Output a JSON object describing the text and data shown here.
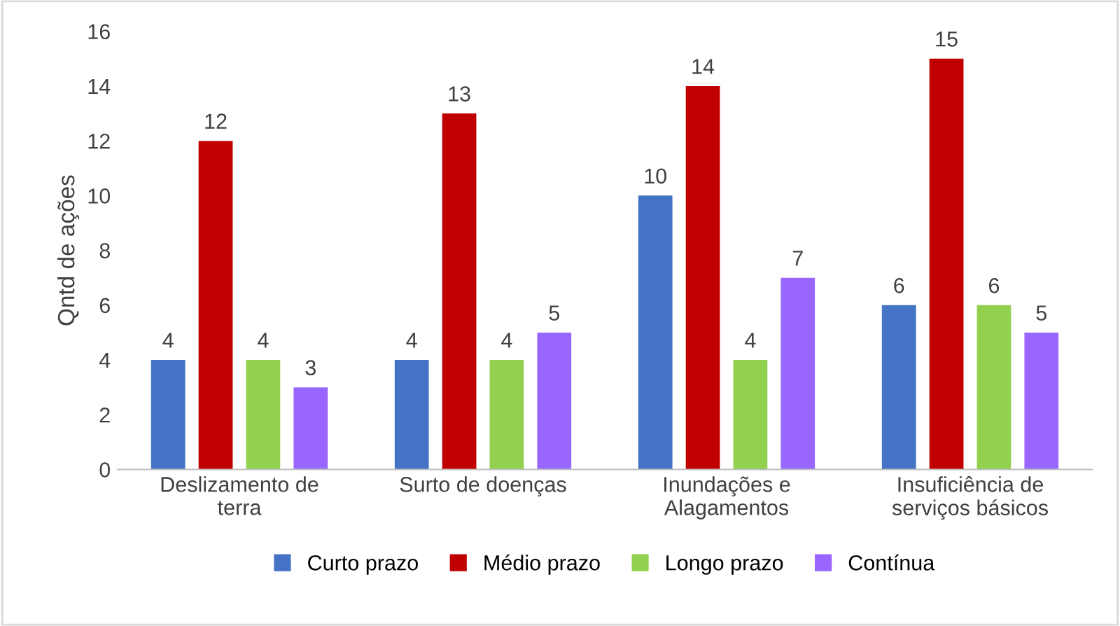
{
  "chart_data": {
    "type": "bar",
    "ylabel": "Qntd de ações",
    "categories": [
      "Deslizamento de\nterra",
      "Surto de doenças",
      "Inundações e\nAlagamentos",
      "Insuficiência de\nserviços básicos"
    ],
    "series": [
      {
        "name": "Curto prazo",
        "color": "#4472c4",
        "values": [
          4,
          4,
          10,
          6
        ]
      },
      {
        "name": "Médio prazo",
        "color": "#c00000",
        "values": [
          12,
          13,
          14,
          15
        ]
      },
      {
        "name": "Longo prazo",
        "color": "#92d050",
        "values": [
          4,
          4,
          4,
          6
        ]
      },
      {
        "name": "Contínua",
        "color": "#9966ff",
        "values": [
          3,
          5,
          7,
          5
        ]
      }
    ],
    "ylim": [
      0,
      16
    ],
    "yticks": [
      0,
      2,
      4,
      6,
      8,
      10,
      12,
      14,
      16
    ],
    "grid": false,
    "legend": "bottom",
    "data_labels": true
  }
}
